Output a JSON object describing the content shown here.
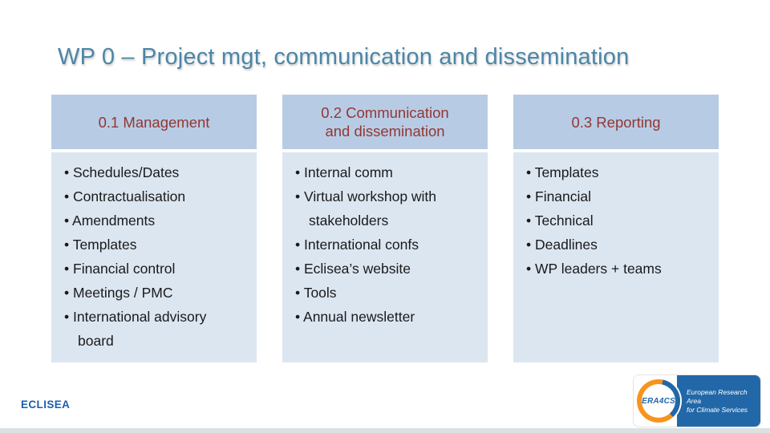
{
  "slide": {
    "title": "WP 0 – Project mgt, communication and dissemination",
    "footer_brand": "ECLISEA"
  },
  "columns": [
    {
      "header": "0.1 Management",
      "items": [
        "Schedules/Dates",
        "Contractualisation",
        "Amendments",
        "Templates",
        "Financial control",
        "Meetings / PMC",
        "International advisory board"
      ]
    },
    {
      "header": "0.2 Communication and dissemination",
      "items": [
        "Internal comm",
        "Virtual workshop with stakeholders",
        "International confs",
        "Eclisea’s website",
        "Tools",
        "Annual newsletter"
      ]
    },
    {
      "header": "0.3 Reporting",
      "items": [
        "Templates",
        "Financial",
        "Technical",
        "Deadlines",
        "WP leaders + teams"
      ]
    }
  ],
  "logo": {
    "badge_text": "ERA4CS",
    "caption_line1": "European Research Area",
    "caption_line2": "for Climate Services"
  },
  "colors": {
    "title_text": "#4b86a7",
    "header_bg": "#b7cce4",
    "header_text": "#943634",
    "body_bg": "#dce6f1",
    "body_text": "#1a1a1a",
    "brand_text": "#1e5fa9",
    "logo_blue": "#2268a8",
    "logo_orange": "#f7941d"
  }
}
